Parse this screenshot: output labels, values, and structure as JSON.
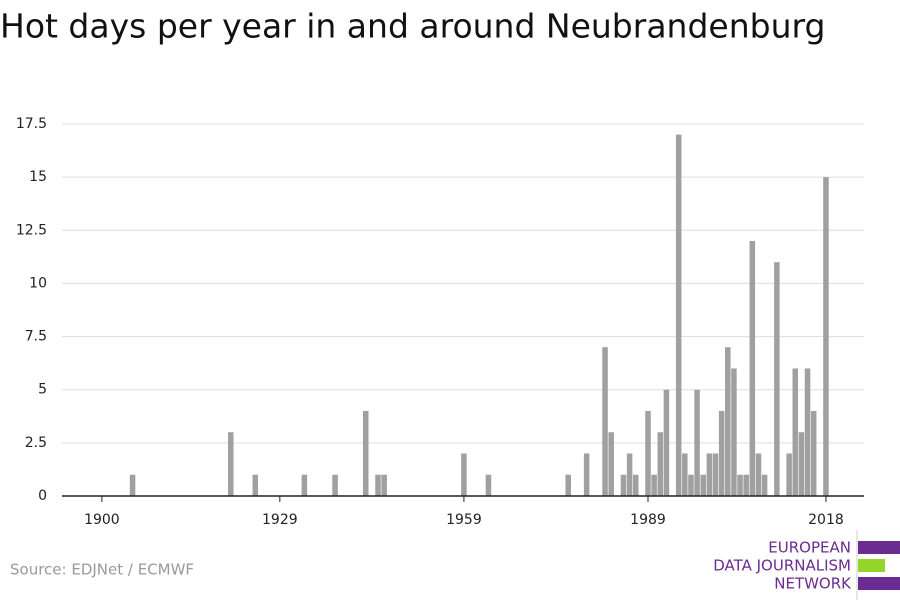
{
  "chart_data": {
    "type": "bar",
    "title": "Hot days per year in and around Neubrandenburg",
    "source": "Source: EDJNet / ECMWF",
    "logo": [
      "EUROPEAN",
      "DATA JOURNALISM",
      "NETWORK"
    ],
    "color": "#a0a0a0",
    "x": [
      1900,
      1901,
      1902,
      1903,
      1904,
      1905,
      1906,
      1907,
      1908,
      1909,
      1910,
      1911,
      1912,
      1913,
      1914,
      1915,
      1916,
      1917,
      1918,
      1919,
      1920,
      1921,
      1922,
      1923,
      1924,
      1925,
      1926,
      1927,
      1928,
      1929,
      1930,
      1931,
      1932,
      1933,
      1934,
      1935,
      1936,
      1937,
      1938,
      1939,
      1940,
      1941,
      1942,
      1943,
      1944,
      1945,
      1946,
      1947,
      1948,
      1949,
      1950,
      1951,
      1952,
      1953,
      1954,
      1955,
      1956,
      1957,
      1958,
      1959,
      1960,
      1961,
      1962,
      1963,
      1964,
      1965,
      1966,
      1967,
      1968,
      1969,
      1970,
      1971,
      1972,
      1973,
      1974,
      1975,
      1976,
      1977,
      1978,
      1979,
      1980,
      1981,
      1982,
      1983,
      1984,
      1985,
      1986,
      1987,
      1988,
      1989,
      1990,
      1991,
      1992,
      1993,
      1994,
      1995,
      1996,
      1997,
      1998,
      1999,
      2000,
      2001,
      2002,
      2003,
      2004,
      2005,
      2006,
      2007,
      2008,
      2009,
      2010,
      2011,
      2012,
      2013,
      2014,
      2015,
      2016,
      2017,
      2018
    ],
    "values": [
      0,
      0,
      0,
      0,
      0,
      1,
      0,
      0,
      0,
      0,
      0,
      0,
      0,
      0,
      0,
      0,
      0,
      0,
      0,
      0,
      0,
      3,
      0,
      0,
      0,
      1,
      0,
      0,
      0,
      0,
      0,
      0,
      0,
      1,
      0,
      0,
      0,
      0,
      1,
      0,
      0,
      0,
      0,
      4,
      0,
      1,
      1,
      0,
      0,
      0,
      0,
      0,
      0,
      0,
      0,
      0,
      0,
      0,
      0,
      2,
      0,
      0,
      0,
      1,
      0,
      0,
      0,
      0,
      0,
      0,
      0,
      0,
      0,
      0,
      0,
      0,
      1,
      0,
      0,
      2,
      0,
      0,
      7,
      3,
      0,
      1,
      2,
      1,
      0,
      4,
      1,
      3,
      5,
      0,
      17,
      2,
      1,
      5,
      1,
      2,
      2,
      4,
      7,
      6,
      1,
      1,
      12,
      2,
      1,
      0,
      11,
      0,
      2,
      6,
      3,
      6,
      4,
      0,
      15
    ],
    "xlim": [
      1893.5,
      2024.2
    ],
    "xticks": [
      1900,
      1929,
      1959,
      1989,
      2018
    ],
    "ylim": [
      0,
      17.5
    ],
    "yticks": [
      0,
      2.5,
      5,
      7.5,
      10,
      12.5,
      15,
      17.5
    ],
    "grid": true
  }
}
